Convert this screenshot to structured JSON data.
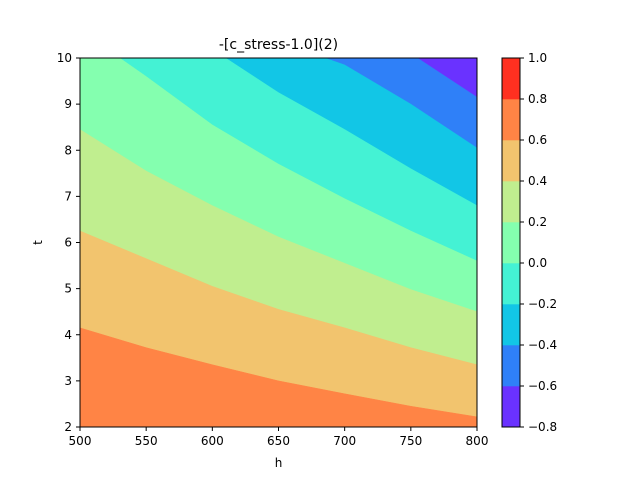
{
  "chart_data": {
    "type": "contourf",
    "title": "-[c_stress-1.0](2)",
    "xlabel": "h",
    "ylabel": "t",
    "xlim": [
      500,
      800
    ],
    "ylim": [
      2,
      10
    ],
    "x_ticks": [
      "500",
      "550",
      "600",
      "650",
      "700",
      "750",
      "800"
    ],
    "y_ticks": [
      "2",
      "3",
      "4",
      "5",
      "6",
      "7",
      "8",
      "9",
      "10"
    ],
    "colorbar": {
      "levels": [
        -0.8,
        -0.6,
        -0.4,
        -0.2,
        0.0,
        0.2,
        0.4,
        0.6,
        0.8,
        1.0
      ],
      "tick_labels": [
        "−0.8",
        "−0.6",
        "−0.4",
        "−0.2",
        "0.0",
        "0.2",
        "0.4",
        "0.6",
        "0.8",
        "1.0"
      ],
      "colors": [
        "#6a32ff",
        "#2f80f8",
        "#12c6e6",
        "#44f2d4",
        "#84ffaf",
        "#c0ee8f",
        "#f2c46e",
        "#ff8445",
        "#ff3020"
      ]
    },
    "contours": [
      {
        "level": 0.6,
        "points": [
          [
            500,
            4.15
          ],
          [
            550,
            3.72
          ],
          [
            600,
            3.35
          ],
          [
            650,
            3.0
          ],
          [
            700,
            2.72
          ],
          [
            750,
            2.45
          ],
          [
            800,
            2.22
          ]
        ]
      },
      {
        "level": 0.4,
        "points": [
          [
            500,
            6.25
          ],
          [
            550,
            5.65
          ],
          [
            600,
            5.05
          ],
          [
            650,
            4.55
          ],
          [
            700,
            4.15
          ],
          [
            750,
            3.72
          ],
          [
            800,
            3.35
          ]
        ]
      },
      {
        "level": 0.2,
        "points": [
          [
            500,
            8.45
          ],
          [
            550,
            7.55
          ],
          [
            600,
            6.8
          ],
          [
            650,
            6.12
          ],
          [
            700,
            5.55
          ],
          [
            750,
            4.98
          ],
          [
            800,
            4.5
          ]
        ]
      },
      {
        "level": 0.0,
        "points": [
          [
            530,
            10.0
          ],
          [
            550,
            9.6
          ],
          [
            600,
            8.55
          ],
          [
            650,
            7.7
          ],
          [
            700,
            6.95
          ],
          [
            750,
            6.25
          ],
          [
            800,
            5.6
          ]
        ]
      },
      {
        "level": -0.2,
        "points": [
          [
            610,
            10.0
          ],
          [
            650,
            9.25
          ],
          [
            700,
            8.45
          ],
          [
            750,
            7.6
          ],
          [
            800,
            6.8
          ]
        ]
      },
      {
        "level": -0.4,
        "points": [
          [
            685,
            10.0
          ],
          [
            700,
            9.85
          ],
          [
            750,
            9.0
          ],
          [
            800,
            8.05
          ]
        ]
      },
      {
        "level": -0.6,
        "points": [
          [
            755,
            10.0
          ],
          [
            800,
            9.15
          ]
        ]
      }
    ]
  }
}
